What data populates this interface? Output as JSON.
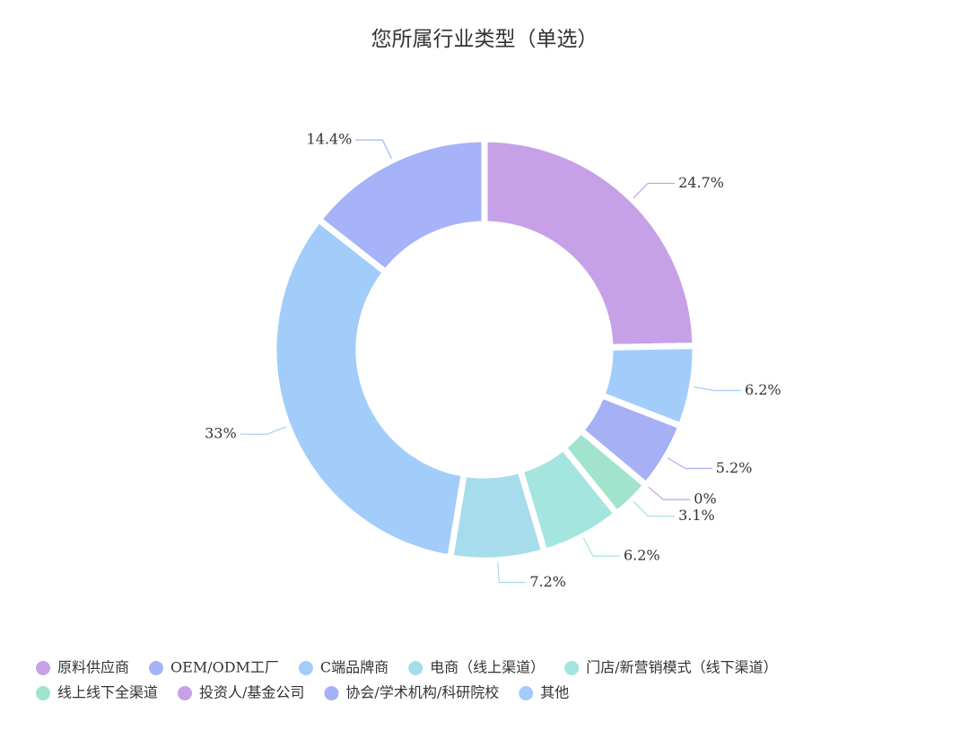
{
  "chart_data": {
    "type": "donut",
    "title": "您所属行业类型（单选）",
    "categories": [
      "原料供应商",
      "OEM/ODM工厂",
      "C端品牌商",
      "电商（线上渠道）",
      "门店/新营销模式（线下渠道）",
      "线上线下全渠道",
      "投资人/基金公司",
      "协会/学术机构/科研院校",
      "其他"
    ],
    "values": [
      24.7,
      14.4,
      33,
      7.2,
      6.2,
      3.1,
      0,
      5.2,
      6.2
    ],
    "value_labels": [
      "24.7%",
      "14.4%",
      "33%",
      "7.2%",
      "6.2%",
      "3.1%",
      "0%",
      "5.2%",
      "6.2%"
    ],
    "colors": [
      "#c6a1e7",
      "#a6b3f8",
      "#a2cdfa",
      "#a7dcec",
      "#a4e5e0",
      "#a1e3cd",
      "#c6a1e7",
      "#a6b0f5",
      "#a2cdfa"
    ]
  }
}
